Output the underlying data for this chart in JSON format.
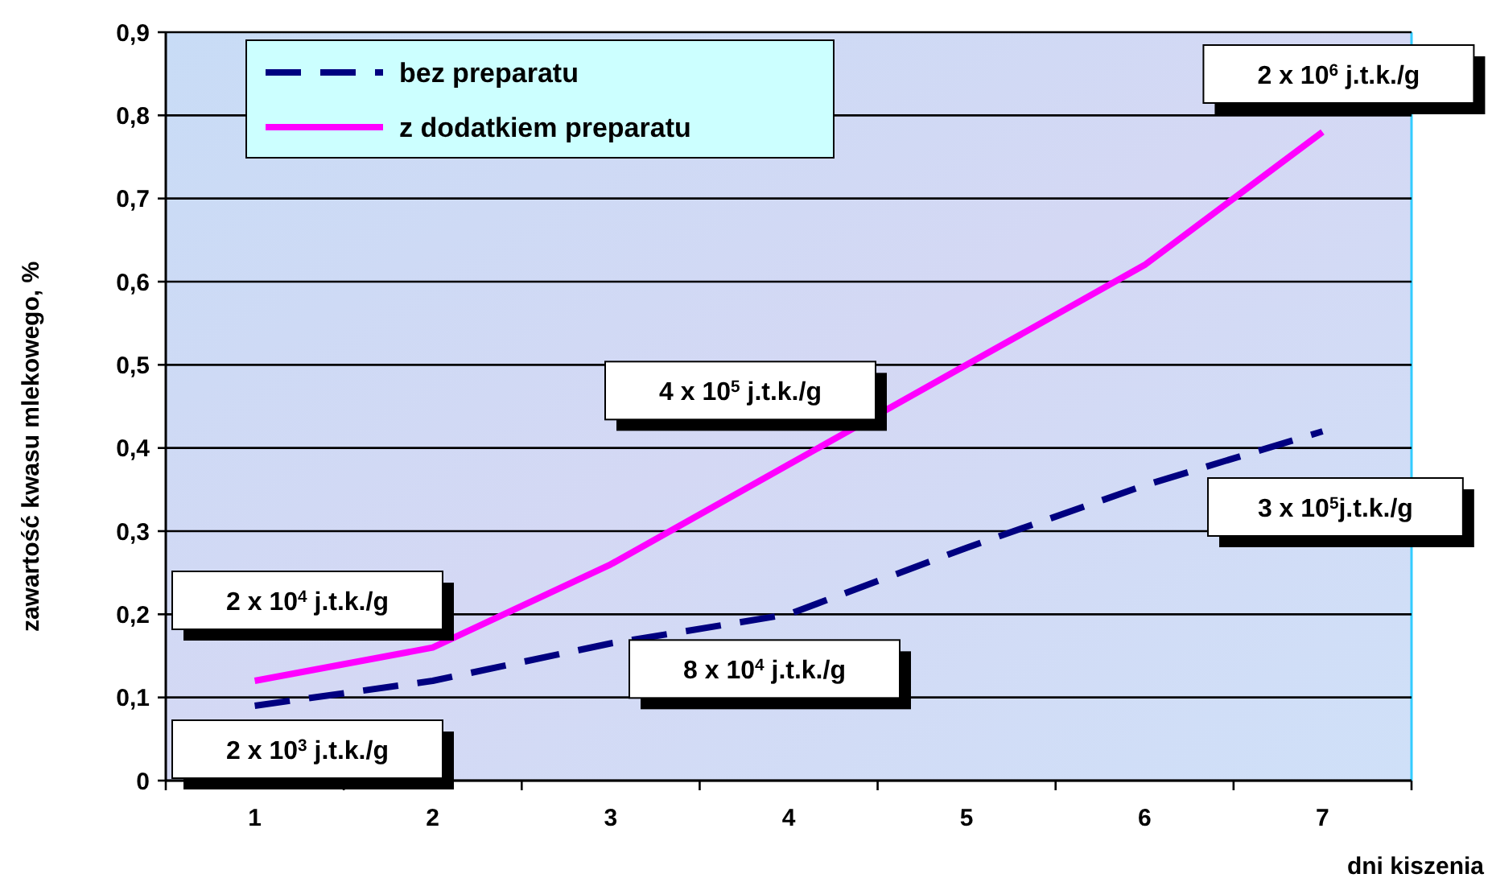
{
  "chart_data": {
    "type": "line",
    "xlabel": "dni kiszenia",
    "ylabel": "zawartość kwasu mlekowego, %",
    "categories": [
      "1",
      "2",
      "3",
      "4",
      "5",
      "6",
      "7"
    ],
    "series": [
      {
        "name": "bez preparatu",
        "color": "#000080",
        "line_style": "dashed",
        "values": [
          0.09,
          0.12,
          0.165,
          0.2,
          0.28,
          0.355,
          0.42
        ]
      },
      {
        "name": "z dodatkiem preparatu",
        "color": "#ff00ff",
        "line_style": "solid",
        "values": [
          0.12,
          0.16,
          0.26,
          0.38,
          0.5,
          0.62,
          0.78
        ]
      }
    ],
    "ylim": [
      0,
      0.9
    ],
    "yticks": [
      {
        "value": 0,
        "label": "0"
      },
      {
        "value": 0.1,
        "label": "0,1"
      },
      {
        "value": 0.2,
        "label": "0,2"
      },
      {
        "value": 0.3,
        "label": "0,3"
      },
      {
        "value": 0.4,
        "label": "0,4"
      },
      {
        "value": 0.5,
        "label": "0,5"
      },
      {
        "value": 0.6,
        "label": "0,6"
      },
      {
        "value": 0.7,
        "label": "0,7"
      },
      {
        "value": 0.8,
        "label": "0,8"
      },
      {
        "value": 0.9,
        "label": "0,9"
      }
    ],
    "grid": "y",
    "legend": "top left",
    "marker": "none",
    "annotations": [
      {
        "text": "2 x 10$^{6}$ j.t.k./g",
        "x": "7",
        "y": 0.78
      },
      {
        "text": "3 x 10$^{5}$j.t.k./g",
        "x": "7",
        "y": 0.42
      },
      {
        "text": "4 x 10$^{5}$ j.t.k./g",
        "x": "4",
        "y": 0.38
      },
      {
        "text": "8 x 10$^{4}$ j.t.k./g",
        "x": "4",
        "y": 0.2
      },
      {
        "text": "2 x 10$^{4}$ j.t.k./g",
        "x": "1",
        "y": 0.12
      },
      {
        "text": "2 x 10$^{3}$ j.t.k./g",
        "x": "1",
        "y": 0.09
      }
    ]
  }
}
